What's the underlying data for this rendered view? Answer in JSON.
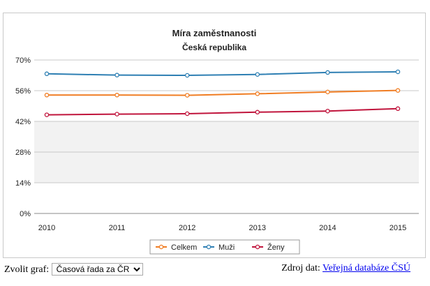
{
  "chart_data": {
    "type": "line",
    "title": "Míra zaměstnanosti",
    "subtitle": "Česká republika",
    "x": [
      "2010",
      "2011",
      "2012",
      "2013",
      "2014",
      "2015"
    ],
    "y_ticks": [
      "0%",
      "14%",
      "28%",
      "42%",
      "56%",
      "70%"
    ],
    "ylim": [
      0,
      70
    ],
    "grid": true,
    "legend_position": "bottom",
    "series": [
      {
        "name": "Celkem",
        "color": "#f07d23",
        "values": [
          54.0,
          54.0,
          53.9,
          54.6,
          55.4,
          56.1
        ]
      },
      {
        "name": "Muži",
        "color": "#2e7fb3",
        "values": [
          63.7,
          63.1,
          63.0,
          63.4,
          64.3,
          64.6
        ]
      },
      {
        "name": "Ženy",
        "color": "#c0143c",
        "values": [
          45.0,
          45.3,
          45.5,
          46.2,
          46.7,
          47.8
        ]
      }
    ],
    "band_color": "#f2f2f2"
  },
  "footer": {
    "select_label": "Zvolit graf:",
    "select_value": "Časová řada za ČR",
    "source_label": "Zdroj dat:",
    "source_link": "Veřejná databáze ČSÚ"
  }
}
